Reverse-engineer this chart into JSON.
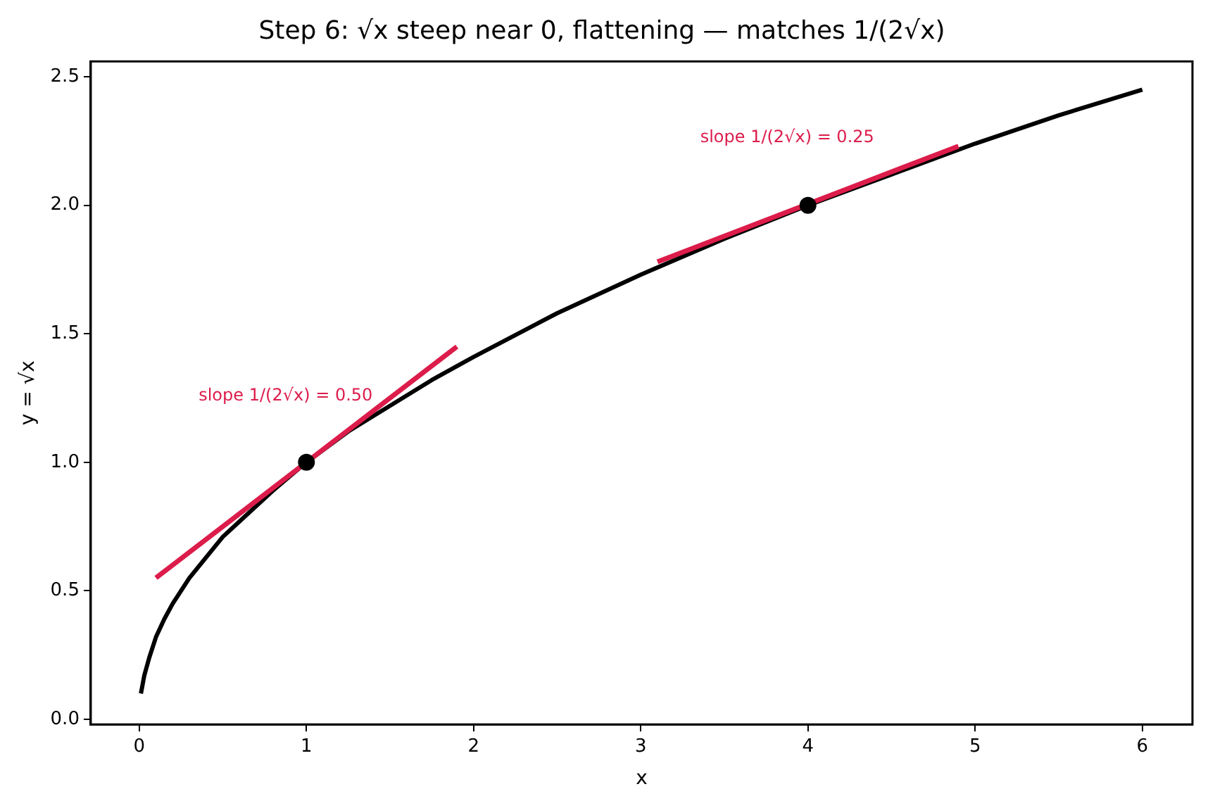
{
  "chart_data": {
    "type": "line",
    "title": "Step 6: √x steep near 0, flattening — matches 1/(2√x)",
    "xlabel": "x",
    "ylabel": "y = √x",
    "xlim": [
      -0.29,
      6.3
    ],
    "ylim": [
      -0.02,
      2.56
    ],
    "xticks": [
      0,
      1,
      2,
      3,
      4,
      5,
      6
    ],
    "yticks": [
      {
        "value": 0,
        "label": "0.0"
      },
      {
        "value": 0.5,
        "label": "0.5"
      },
      {
        "value": 1,
        "label": "1.0"
      },
      {
        "value": 1.5,
        "label": "1.5"
      },
      {
        "value": 2,
        "label": "2.0"
      },
      {
        "value": 2.5,
        "label": "2.5"
      }
    ],
    "grid": false,
    "legend": false,
    "series": [
      {
        "type": "line",
        "color": "#000000",
        "x": [
          0.01,
          0.03,
          0.06,
          0.1,
          0.15,
          0.2,
          0.3,
          0.4,
          0.5,
          0.6,
          0.8,
          1,
          1.25,
          1.5,
          1.75,
          2,
          2.5,
          3,
          3.5,
          4,
          4.5,
          5,
          5.5,
          6
        ],
        "values": [
          0.1,
          0.17,
          0.24,
          0.32,
          0.39,
          0.45,
          0.55,
          0.63,
          0.71,
          0.77,
          0.89,
          1,
          1.12,
          1.22,
          1.32,
          1.41,
          1.58,
          1.73,
          1.87,
          2,
          2.12,
          2.24,
          2.35,
          2.45
        ]
      },
      {
        "type": "line",
        "color": "#dc1c4b",
        "x": [
          0.1,
          1.9
        ],
        "values": [
          0.55,
          1.45
        ]
      },
      {
        "type": "line",
        "color": "#dc1c4b",
        "x": [
          3.1,
          4.9
        ],
        "values": [
          1.78,
          2.23
        ]
      },
      {
        "type": "scatter",
        "color": "#000000",
        "marker": "circle",
        "x": [
          1,
          4
        ],
        "values": [
          1,
          2
        ]
      }
    ],
    "annotations": [
      "slope 1/(2√x) = 0.50",
      "slope 1/(2√x) = 0.25"
    ]
  }
}
